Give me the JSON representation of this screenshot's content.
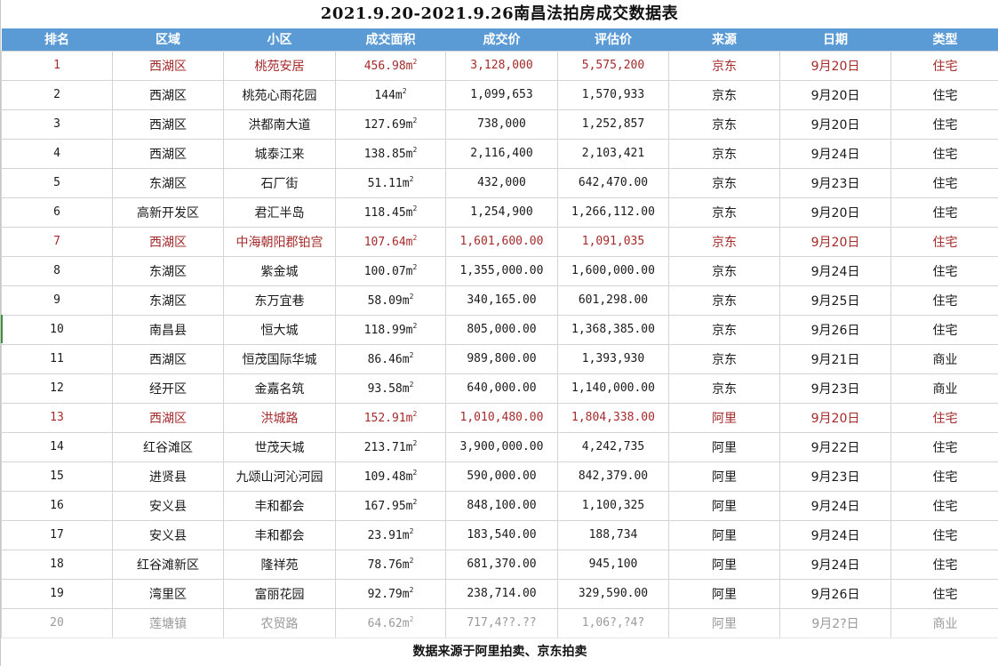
{
  "title": "2021.9.20-2021.9.26南昌法拍房成交数据表",
  "colors": {
    "header_bg": "#5b9bd5",
    "header_text": "#ffffff",
    "highlight_text": "#a52a2a",
    "grid_line": "#d4d4d4"
  },
  "table": {
    "headers": [
      "排名",
      "区域",
      "小区",
      "成交面积",
      "成交价",
      "评估价",
      "来源",
      "日期",
      "类型"
    ],
    "area_unit": "m",
    "area_unit_sup": "2",
    "rows": [
      {
        "rank": "1",
        "district": "西湖区",
        "community": "桃苑安居",
        "area": "456.98",
        "price": "3,128,000",
        "appraisal": "5,575,200",
        "source": "京东",
        "date": "9月20日",
        "type": "住宅",
        "highlight": true
      },
      {
        "rank": "2",
        "district": "西湖区",
        "community": "桃苑心雨花园",
        "area": "144",
        "price": "1,099,653",
        "appraisal": "1,570,933",
        "source": "京东",
        "date": "9月20日",
        "type": "住宅",
        "highlight": false
      },
      {
        "rank": "3",
        "district": "西湖区",
        "community": "洪都南大道",
        "area": "127.69",
        "price": "738,000",
        "appraisal": "1,252,857",
        "source": "京东",
        "date": "9月20日",
        "type": "住宅",
        "highlight": false
      },
      {
        "rank": "4",
        "district": "西湖区",
        "community": "城泰江来",
        "area": "138.85",
        "price": "2,116,400",
        "appraisal": "2,103,421",
        "source": "京东",
        "date": "9月24日",
        "type": "住宅",
        "highlight": false
      },
      {
        "rank": "5",
        "district": "东湖区",
        "community": "石厂街",
        "area": "51.11",
        "price": "432,000",
        "appraisal": "642,470.00",
        "source": "京东",
        "date": "9月23日",
        "type": "住宅",
        "highlight": false
      },
      {
        "rank": "6",
        "district": "高新开发区",
        "community": "君汇半岛",
        "area": "118.45",
        "price": "1,254,900",
        "appraisal": "1,266,112.00",
        "source": "京东",
        "date": "9月20日",
        "type": "住宅",
        "highlight": false
      },
      {
        "rank": "7",
        "district": "西湖区",
        "community": "中海朝阳郡铂宫",
        "area": "107.64",
        "price": "1,601,600.00",
        "appraisal": "1,091,035",
        "source": "京东",
        "date": "9月20日",
        "type": "住宅",
        "highlight": true
      },
      {
        "rank": "8",
        "district": "东湖区",
        "community": "紫金城",
        "area": "100.07",
        "price": "1,355,000.00",
        "appraisal": "1,600,000.00",
        "source": "京东",
        "date": "9月24日",
        "type": "住宅",
        "highlight": false
      },
      {
        "rank": "9",
        "district": "东湖区",
        "community": "东万宜巷",
        "area": "58.09",
        "price": "340,165.00",
        "appraisal": "601,298.00",
        "source": "京东",
        "date": "9月25日",
        "type": "住宅",
        "highlight": false
      },
      {
        "rank": "10",
        "district": "南昌县",
        "community": "恒大城",
        "area": "118.99",
        "price": "805,000.00",
        "appraisal": "1,368,385.00",
        "source": "京东",
        "date": "9月26日",
        "type": "住宅",
        "highlight": false
      },
      {
        "rank": "11",
        "district": "西湖区",
        "community": "恒茂国际华城",
        "area": "86.46",
        "price": "989,800.00",
        "appraisal": "1,393,930",
        "source": "京东",
        "date": "9月21日",
        "type": "商业",
        "highlight": false
      },
      {
        "rank": "12",
        "district": "经开区",
        "community": "金嘉名筑",
        "area": "93.58",
        "price": "640,000.00",
        "appraisal": "1,140,000.00",
        "source": "京东",
        "date": "9月23日",
        "type": "商业",
        "highlight": false
      },
      {
        "rank": "13",
        "district": "西湖区",
        "community": "洪城路",
        "area": "152.91",
        "price": "1,010,480.00",
        "appraisal": "1,804,338.00",
        "source": "阿里",
        "date": "9月20日",
        "type": "住宅",
        "highlight": true
      },
      {
        "rank": "14",
        "district": "红谷滩区",
        "community": "世茂天城",
        "area": "213.71",
        "price": "3,900,000.00",
        "appraisal": "4,242,735",
        "source": "阿里",
        "date": "9月22日",
        "type": "住宅",
        "highlight": false
      },
      {
        "rank": "15",
        "district": "进贤县",
        "community": "九颂山河沁河园",
        "area": "109.48",
        "price": "590,000.00",
        "appraisal": "842,379.00",
        "source": "阿里",
        "date": "9月23日",
        "type": "住宅",
        "highlight": false
      },
      {
        "rank": "16",
        "district": "安义县",
        "community": "丰和都会",
        "area": "167.95",
        "price": "848,100.00",
        "appraisal": "1,100,325",
        "source": "阿里",
        "date": "9月24日",
        "type": "住宅",
        "highlight": false
      },
      {
        "rank": "17",
        "district": "安义县",
        "community": "丰和都会",
        "area": "23.91",
        "price": "183,540.00",
        "appraisal": "188,734",
        "source": "阿里",
        "date": "9月24日",
        "type": "住宅",
        "highlight": false
      },
      {
        "rank": "18",
        "district": "红谷滩新区",
        "community": "隆祥苑",
        "area": "78.76",
        "price": "681,370.00",
        "appraisal": "945,100",
        "source": "阿里",
        "date": "9月24日",
        "type": "住宅",
        "highlight": false
      },
      {
        "rank": "19",
        "district": "湾里区",
        "community": "富丽花园",
        "area": "92.79",
        "price": "238,714.00",
        "appraisal": "329,590.00",
        "source": "阿里",
        "date": "9月26日",
        "type": "住宅",
        "highlight": false
      },
      {
        "rank": "20",
        "district": "莲塘镇",
        "community": "农贸路",
        "area": "64.62",
        "price": "717,4??.??",
        "appraisal": "1,06?,?4?",
        "source": "阿里",
        "date": "9月2?日",
        "type": "商业",
        "highlight": false,
        "garbled": true
      }
    ]
  },
  "footer": "数据来源于阿里拍卖、京东拍卖"
}
